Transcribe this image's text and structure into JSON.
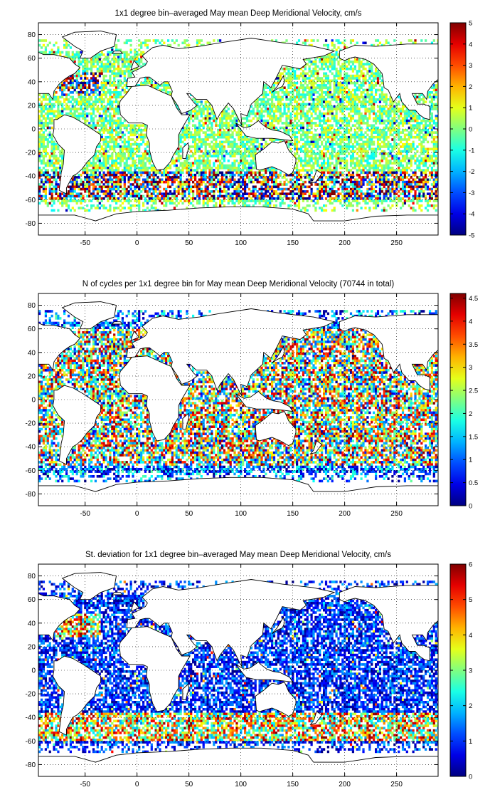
{
  "chart_data": [
    {
      "type": "heatmap",
      "title": "1x1 degree bin–averaged May mean Deep Meridional Velocity, cm/s",
      "xlim": [
        -95,
        290
      ],
      "ylim": [
        -90,
        90
      ],
      "xticks": [
        "-50",
        "0",
        "50",
        "100",
        "150",
        "200",
        "250"
      ],
      "xtick_values": [
        -50,
        0,
        50,
        100,
        150,
        200,
        250
      ],
      "yticks": [
        "80",
        "60",
        "40",
        "20",
        "0",
        "-20",
        "-40",
        "-60",
        "-80"
      ],
      "ytick_values": [
        80,
        60,
        40,
        20,
        0,
        -20,
        -40,
        -60,
        -80
      ],
      "colorbar": {
        "min": -5,
        "max": 5,
        "ticks": [
          "5",
          "4",
          "3",
          "2",
          "1",
          "0",
          "-1",
          "-2",
          "-3",
          "-4",
          "-5"
        ],
        "tick_values": [
          5,
          4,
          3,
          2,
          1,
          0,
          -1,
          -2,
          -3,
          -4,
          -5
        ]
      },
      "colormap": "jet",
      "grid": true,
      "field": "signed_velocity",
      "seed": 11
    },
    {
      "type": "heatmap",
      "title": "N of cycles per 1x1 degree bin for May mean Deep Meridional Velocity (70744 in total)",
      "xlim": [
        -95,
        290
      ],
      "ylim": [
        -90,
        90
      ],
      "xticks": [
        "-50",
        "0",
        "50",
        "100",
        "150",
        "200",
        "250"
      ],
      "xtick_values": [
        -50,
        0,
        50,
        100,
        150,
        200,
        250
      ],
      "yticks": [
        "80",
        "60",
        "40",
        "20",
        "0",
        "-20",
        "-40",
        "-60",
        "-80"
      ],
      "ytick_values": [
        80,
        60,
        40,
        20,
        0,
        -20,
        -40,
        -60,
        -80
      ],
      "colorbar": {
        "min": 0,
        "max": 4.6,
        "ticks": [
          "4.5",
          "4",
          "3.5",
          "3",
          "2.5",
          "2",
          "1.5",
          "1",
          "0.5",
          "0"
        ],
        "tick_values": [
          4.5,
          4,
          3.5,
          3,
          2.5,
          2,
          1.5,
          1,
          0.5,
          0
        ]
      },
      "colormap": "jet",
      "grid": true,
      "field": "count",
      "seed": 23
    },
    {
      "type": "heatmap",
      "title": "St. deviation for 1x1 degree bin–averaged May mean Deep Meridional Velocity, cm/s",
      "xlim": [
        -95,
        290
      ],
      "ylim": [
        -90,
        90
      ],
      "xticks": [
        "-50",
        "0",
        "50",
        "100",
        "150",
        "200",
        "250"
      ],
      "xtick_values": [
        -50,
        0,
        50,
        100,
        150,
        200,
        250
      ],
      "yticks": [
        "80",
        "60",
        "40",
        "20",
        "0",
        "-20",
        "-40",
        "-60",
        "-80"
      ],
      "ytick_values": [
        80,
        60,
        40,
        20,
        0,
        -20,
        -40,
        -60,
        -80
      ],
      "colorbar": {
        "min": 0,
        "max": 6,
        "ticks": [
          "6",
          "5",
          "4",
          "3",
          "2",
          "1",
          "0"
        ],
        "tick_values": [
          6,
          5,
          4,
          3,
          2,
          1,
          0
        ]
      },
      "colormap": "jet",
      "grid": true,
      "field": "stddev",
      "seed": 37
    }
  ]
}
